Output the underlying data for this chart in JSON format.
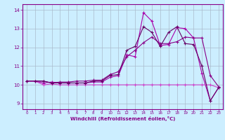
{
  "bg_color": "#cceeff",
  "grid_color": "#aabbcc",
  "line_colors": [
    "#aa00aa",
    "#880088",
    "#cc44cc",
    "#660066"
  ],
  "xlabel": "Windchill (Refroidissement éolien,°C)",
  "xlabel_color": "#880088",
  "tick_color": "#880088",
  "spine_color": "#880088",
  "xlim": [
    -0.5,
    23.5
  ],
  "ylim": [
    8.7,
    14.3
  ],
  "yticks": [
    9,
    10,
    11,
    12,
    13,
    14
  ],
  "xticks": [
    0,
    1,
    2,
    3,
    4,
    5,
    6,
    7,
    8,
    9,
    10,
    11,
    12,
    13,
    14,
    15,
    16,
    17,
    18,
    19,
    20,
    21,
    22,
    23
  ],
  "series": [
    [
      10.2,
      10.2,
      10.1,
      10.15,
      10.1,
      10.1,
      10.1,
      10.1,
      10.15,
      10.15,
      10.4,
      10.5,
      11.6,
      11.5,
      13.85,
      13.4,
      12.1,
      12.15,
      13.05,
      13.0,
      12.5,
      10.6,
      9.15,
      9.85
    ],
    [
      10.2,
      10.2,
      10.2,
      10.1,
      10.15,
      10.15,
      10.2,
      10.2,
      10.25,
      10.25,
      10.55,
      10.7,
      11.5,
      11.85,
      12.25,
      12.55,
      12.2,
      12.2,
      12.3,
      12.55,
      12.5,
      12.5,
      10.5,
      9.9
    ],
    [
      10.2,
      10.2,
      10.0,
      10.05,
      10.0,
      10.0,
      10.0,
      10.0,
      10.0,
      10.0,
      10.0,
      10.0,
      10.0,
      10.0,
      10.0,
      10.0,
      10.0,
      10.0,
      10.0,
      10.0,
      10.0,
      10.0,
      10.0,
      9.85
    ],
    [
      10.2,
      10.2,
      10.2,
      10.1,
      10.1,
      10.1,
      10.1,
      10.1,
      10.2,
      10.2,
      10.5,
      10.55,
      11.85,
      12.05,
      13.1,
      12.8,
      12.05,
      12.8,
      13.1,
      12.2,
      12.15,
      11.0,
      9.15,
      9.85
    ]
  ]
}
